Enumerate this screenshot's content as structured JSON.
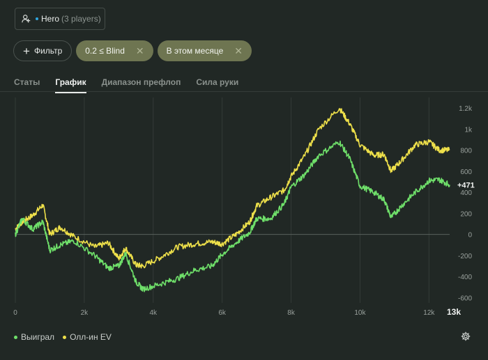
{
  "player": {
    "name": "Hero",
    "count": "(3 players)",
    "icon": "user-icon"
  },
  "filters": {
    "filter_button": "Фильтр",
    "chips": [
      {
        "label": "0.2 ≤ Blind",
        "remove": "✕"
      },
      {
        "label": "В этом месяце",
        "remove": "✕"
      }
    ]
  },
  "tabs": [
    "Статы",
    "График",
    "Диапазон префлоп",
    "Сила руки"
  ],
  "active_tab": "График",
  "colors": {
    "won": "#6fe06a",
    "allin_ev": "#eee04a",
    "background": "#212825",
    "chip": "#6e7551"
  },
  "chart_data": {
    "type": "line",
    "title": "",
    "xlabel": "",
    "ylabel": "",
    "xlim": [
      0,
      12600
    ],
    "ylim": [
      -650,
      1300
    ],
    "x_ticks": [
      "0",
      "2k",
      "4k",
      "6k",
      "8k",
      "10k",
      "12k"
    ],
    "x_tick_values": [
      0,
      2000,
      4000,
      6000,
      8000,
      10000,
      12000
    ],
    "x_end_label": "13k",
    "y_ticks": [
      "1.2k",
      "1k",
      "800",
      "600",
      "400",
      "200",
      "0",
      "-200",
      "-400",
      "-600"
    ],
    "y_tick_values": [
      1200,
      1000,
      800,
      600,
      400,
      200,
      0,
      -200,
      -400,
      -600
    ],
    "current_value_label": "+471",
    "current_value": 471,
    "grid": "vertical",
    "legend_position": "bottom-left",
    "series": [
      {
        "name": "Выиграл",
        "color": "#6fe06a",
        "points": [
          [
            0,
            0
          ],
          [
            200,
            150
          ],
          [
            500,
            50
          ],
          [
            800,
            120
          ],
          [
            1000,
            -150
          ],
          [
            1300,
            -100
          ],
          [
            1700,
            -60
          ],
          [
            2300,
            -200
          ],
          [
            2700,
            -320
          ],
          [
            3000,
            -300
          ],
          [
            3200,
            -180
          ],
          [
            3500,
            -450
          ],
          [
            3700,
            -520
          ],
          [
            4200,
            -470
          ],
          [
            4700,
            -420
          ],
          [
            5200,
            -340
          ],
          [
            5700,
            -300
          ],
          [
            6000,
            -190
          ],
          [
            6400,
            -80
          ],
          [
            6800,
            20
          ],
          [
            7000,
            150
          ],
          [
            7400,
            150
          ],
          [
            7800,
            290
          ],
          [
            8000,
            450
          ],
          [
            8400,
            570
          ],
          [
            8800,
            750
          ],
          [
            9400,
            880
          ],
          [
            9700,
            720
          ],
          [
            10000,
            460
          ],
          [
            10400,
            400
          ],
          [
            10700,
            330
          ],
          [
            10900,
            160
          ],
          [
            11200,
            270
          ],
          [
            11600,
            400
          ],
          [
            12000,
            510
          ],
          [
            12300,
            520
          ],
          [
            12600,
            471
          ]
        ]
      },
      {
        "name": "Олл-ин EV",
        "color": "#eee04a",
        "points": [
          [
            0,
            50
          ],
          [
            200,
            120
          ],
          [
            500,
            180
          ],
          [
            800,
            280
          ],
          [
            1000,
            0
          ],
          [
            1300,
            70
          ],
          [
            1700,
            -20
          ],
          [
            2300,
            -120
          ],
          [
            2700,
            -80
          ],
          [
            3000,
            -230
          ],
          [
            3200,
            -130
          ],
          [
            3500,
            -290
          ],
          [
            3700,
            -300
          ],
          [
            4200,
            -220
          ],
          [
            4700,
            -120
          ],
          [
            5200,
            -90
          ],
          [
            5700,
            -70
          ],
          [
            6000,
            -90
          ],
          [
            6400,
            0
          ],
          [
            6800,
            120
          ],
          [
            7000,
            270
          ],
          [
            7400,
            350
          ],
          [
            7800,
            420
          ],
          [
            8000,
            550
          ],
          [
            8400,
            750
          ],
          [
            8800,
            1000
          ],
          [
            9400,
            1200
          ],
          [
            9700,
            1050
          ],
          [
            10000,
            850
          ],
          [
            10400,
            750
          ],
          [
            10700,
            760
          ],
          [
            10900,
            600
          ],
          [
            11200,
            700
          ],
          [
            11600,
            850
          ],
          [
            12000,
            880
          ],
          [
            12300,
            800
          ],
          [
            12600,
            800
          ]
        ]
      }
    ]
  }
}
